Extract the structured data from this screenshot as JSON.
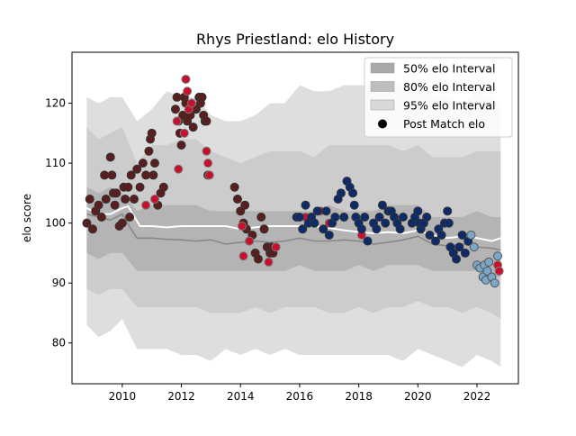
{
  "chart_data": {
    "type": "scatter",
    "title": "Rhys Priestland: elo History",
    "xlabel": "",
    "ylabel": "elo score",
    "xlim": [
      2008.3,
      2023.4
    ],
    "ylim": [
      73.2,
      128.5
    ],
    "x_ticks": [
      2010,
      2012,
      2014,
      2016,
      2018,
      2020,
      2022
    ],
    "y_ticks": [
      80,
      90,
      100,
      110,
      120
    ],
    "grid": false,
    "legend_position": "top-right",
    "legend": [
      {
        "label": "50% elo Interval",
        "kind": "band",
        "color": "#a9a9a9"
      },
      {
        "label": "80% elo Interval",
        "kind": "band",
        "color": "#bebebe"
      },
      {
        "label": "95% elo Interval",
        "kind": "band",
        "color": "#d9d9d9"
      },
      {
        "label": "Post Match elo",
        "kind": "marker",
        "color": "#000000"
      }
    ],
    "bands": [
      {
        "name": "95% elo Interval",
        "color": "#dedede",
        "x": [
          2008.8,
          2009.2,
          2009.6,
          2010.0,
          2010.5,
          2011.0,
          2011.5,
          2012.0,
          2012.5,
          2013.0,
          2013.5,
          2014.0,
          2014.5,
          2015.0,
          2015.5,
          2016.0,
          2016.5,
          2017.0,
          2017.5,
          2018.0,
          2018.5,
          2019.0,
          2019.5,
          2020.0,
          2020.5,
          2021.0,
          2021.5,
          2022.0,
          2022.5,
          2022.8
        ],
        "upper": [
          121,
          120,
          121,
          121,
          117,
          119,
          122,
          121,
          121,
          118,
          117,
          117,
          118,
          120,
          120,
          123,
          122,
          122,
          123,
          123,
          123,
          124,
          123,
          124,
          121,
          121,
          120,
          122,
          121,
          120
        ],
        "lower": [
          83,
          81,
          82,
          84,
          79,
          79,
          79,
          78,
          78,
          77,
          79,
          78,
          79,
          78,
          79,
          78,
          78,
          78,
          78,
          78,
          78,
          78,
          77,
          79,
          78,
          77,
          76,
          78,
          77,
          76
        ]
      },
      {
        "name": "80% elo Interval",
        "color": "#cccccc",
        "x": [
          2008.8,
          2009.2,
          2009.6,
          2010.0,
          2010.5,
          2011.0,
          2011.5,
          2012.0,
          2012.5,
          2013.0,
          2013.5,
          2014.0,
          2014.5,
          2015.0,
          2015.5,
          2016.0,
          2016.5,
          2017.0,
          2017.5,
          2018.0,
          2018.5,
          2019.0,
          2019.5,
          2020.0,
          2020.5,
          2021.0,
          2021.5,
          2022.0,
          2022.5,
          2022.8
        ],
        "upper": [
          116,
          114,
          115,
          116,
          110,
          113,
          113,
          114,
          114,
          112,
          111,
          110,
          111,
          112,
          112,
          112,
          111,
          113,
          113,
          113,
          113,
          113,
          112,
          113,
          111,
          111,
          111,
          112,
          112,
          112
        ],
        "lower": [
          89,
          88,
          89,
          89,
          86,
          86,
          86,
          86,
          86,
          85,
          85,
          85,
          86,
          85,
          86,
          86,
          86,
          85,
          85,
          86,
          85,
          86,
          86,
          87,
          86,
          86,
          85,
          86,
          85,
          84
        ]
      },
      {
        "name": "50% elo Interval",
        "color": "#b4b4b4",
        "x": [
          2008.8,
          2009.2,
          2009.6,
          2010.0,
          2010.5,
          2011.0,
          2011.5,
          2012.0,
          2012.5,
          2013.0,
          2013.5,
          2014.0,
          2014.5,
          2015.0,
          2015.5,
          2016.0,
          2016.5,
          2017.0,
          2017.5,
          2018.0,
          2018.5,
          2019.0,
          2019.5,
          2020.0,
          2020.5,
          2021.0,
          2021.5,
          2022.0,
          2022.5,
          2022.8
        ],
        "upper": [
          106,
          105,
          106,
          105,
          102,
          103,
          103,
          103,
          103,
          102,
          102,
          102,
          102,
          102,
          102,
          102,
          102,
          103,
          102,
          102,
          102,
          103,
          103,
          103,
          101,
          101,
          101,
          102,
          101,
          101
        ],
        "lower": [
          95,
          94,
          95,
          95,
          92,
          92,
          92,
          92,
          92,
          92,
          92,
          92,
          92,
          92,
          92,
          93,
          92,
          92,
          92,
          93,
          92,
          93,
          93,
          93,
          92,
          92,
          92,
          92,
          91,
          91
        ]
      }
    ],
    "lines": [
      {
        "name": "median",
        "color": "#888888",
        "x": [
          2008.8,
          2009.2,
          2009.6,
          2010.0,
          2010.3,
          2010.5,
          2011.0,
          2011.5,
          2012.0,
          2012.5,
          2013.0,
          2013.5,
          2014.0,
          2014.5,
          2015.0,
          2015.5,
          2016.0,
          2016.5,
          2017.0,
          2017.5,
          2018.0,
          2018.5,
          2019.0,
          2019.5,
          2020.0,
          2020.5,
          2021.0,
          2021.5,
          2022.0,
          2022.5,
          2022.8
        ],
        "y": [
          101.5,
          101.0,
          100.5,
          101.5,
          99.0,
          97.5,
          97.5,
          97.3,
          97.2,
          97.0,
          97.2,
          96.5,
          96.8,
          97.0,
          96.8,
          97.0,
          97.5,
          97.0,
          97.0,
          97.2,
          97.0,
          96.5,
          96.8,
          97.2,
          97.8,
          96.5,
          96.2,
          96.5,
          96.0,
          95.8,
          95.5
        ]
      },
      {
        "name": "mean",
        "color": "#ffffff",
        "x": [
          2008.8,
          2009.2,
          2009.6,
          2010.0,
          2010.2,
          2010.6,
          2011.0,
          2011.5,
          2012.0,
          2012.5,
          2013.0,
          2013.5,
          2014.0,
          2014.5,
          2015.0,
          2015.5,
          2016.0,
          2016.5,
          2017.0,
          2017.5,
          2018.0,
          2018.5,
          2019.0,
          2019.5,
          2020.0,
          2020.5,
          2021.0,
          2021.5,
          2022.0,
          2022.5,
          2022.8
        ],
        "y": [
          102.5,
          101.5,
          101.5,
          102.5,
          102.8,
          99.5,
          99.5,
          99.3,
          99.5,
          99.5,
          99.5,
          99.5,
          99.0,
          99.3,
          99.5,
          99.5,
          99.5,
          99.5,
          99.2,
          98.8,
          98.5,
          98.3,
          98.5,
          98.3,
          98.8,
          98.0,
          97.5,
          97.8,
          97.5,
          97.0,
          97.5
        ]
      }
    ],
    "series": [
      {
        "name": "Post Match elo",
        "fill": "#5a1e1e",
        "edge": "#333333",
        "x": [
          2008.8,
          2008.9,
          2009.0,
          2009.1,
          2009.2,
          2009.3,
          2009.4,
          2009.45,
          2009.6,
          2009.65,
          2009.7,
          2009.75,
          2009.8,
          2009.9,
          2010.0,
          2010.05,
          2010.1,
          2010.2,
          2010.25,
          2010.3,
          2010.4,
          2010.5,
          2010.6,
          2010.7,
          2010.8,
          2010.9,
          2010.95,
          2011.0,
          2011.05,
          2011.1,
          2011.2,
          2011.3,
          2011.4,
          2011.8,
          2011.85,
          2011.9,
          2011.95,
          2012.0,
          2012.05,
          2012.1,
          2012.15,
          2012.2,
          2012.3,
          2012.4,
          2012.5,
          2012.6,
          2012.65,
          2012.7,
          2012.75,
          2012.8,
          2012.85,
          2012.9,
          2013.8,
          2013.9,
          2014.0,
          2014.1,
          2014.15,
          2014.2,
          2014.3,
          2014.4,
          2014.5,
          2014.6,
          2014.7,
          2014.8,
          2014.9,
          2015.0,
          2015.05,
          2015.1
        ],
        "y": [
          100,
          104,
          99,
          102,
          103,
          101,
          108,
          104,
          111,
          108,
          105,
          103,
          105,
          99.5,
          100,
          106,
          104,
          106,
          101,
          108,
          104,
          109,
          106,
          110,
          108,
          112,
          114,
          115,
          108,
          110,
          103,
          105,
          106,
          119,
          121,
          117,
          115,
          113,
          118,
          121,
          120,
          117,
          118,
          116,
          119,
          121,
          120,
          121,
          118,
          117,
          117,
          108,
          106,
          104,
          102,
          100,
          103,
          99,
          97,
          98,
          95,
          94,
          101,
          99,
          96,
          95,
          96,
          95
        ]
      },
      {
        "name": "Post Match elo",
        "fill": "#c8102e",
        "edge": "#7a7a7a",
        "x": [
          2010.8,
          2011.1,
          2011.85,
          2011.9,
          2012.1,
          2012.15,
          2012.2,
          2012.25,
          2012.35,
          2012.85,
          2012.9,
          2012.95,
          2014.05,
          2014.1,
          2014.3,
          2014.95,
          2015.2,
          2016.2,
          2016.5,
          2016.7,
          2017.0,
          2018.1,
          2022.7,
          2022.75
        ],
        "y": [
          103,
          104,
          117,
          109,
          115,
          124,
          122,
          119,
          120,
          112,
          110,
          108,
          99.5,
          94.5,
          97,
          93.5,
          96,
          101,
          100,
          102,
          100,
          98,
          93,
          92
        ]
      },
      {
        "name": "Post Match elo",
        "fill": "#0d2b6b",
        "edge": "#333333",
        "x": [
          2015.9,
          2016.0,
          2016.1,
          2016.2,
          2016.3,
          2016.4,
          2016.5,
          2016.6,
          2016.8,
          2016.9,
          2017.0,
          2017.1,
          2017.2,
          2017.3,
          2017.4,
          2017.5,
          2017.6,
          2017.7,
          2017.8,
          2017.85,
          2017.9,
          2018.0,
          2018.1,
          2018.2,
          2018.3,
          2018.5,
          2018.6,
          2018.7,
          2018.8,
          2018.9,
          2019.0,
          2019.1,
          2019.2,
          2019.3,
          2019.4,
          2019.5,
          2019.8,
          2019.9,
          2020.0,
          2020.05,
          2020.1,
          2020.2,
          2020.3,
          2020.4,
          2020.6,
          2020.7,
          2020.8,
          2020.9,
          2021.0,
          2021.05,
          2021.1,
          2021.2,
          2021.3,
          2021.4,
          2021.5,
          2021.6,
          2021.7
        ],
        "y": [
          101,
          101,
          99,
          103,
          100,
          101,
          100,
          102,
          99,
          102,
          98,
          100,
          101,
          104,
          105,
          101,
          107,
          106,
          105,
          103,
          101,
          100,
          99,
          101,
          97,
          100,
          99,
          101,
          103,
          100,
          102,
          102,
          101,
          100,
          99,
          101,
          100,
          101,
          102,
          100,
          99,
          100,
          101,
          98,
          97,
          99,
          98,
          100,
          102,
          100,
          96,
          95,
          94,
          96,
          98,
          95,
          97
        ]
      },
      {
        "name": "Post Match elo",
        "fill": "#7ba7c9",
        "edge": "#555555",
        "x": [
          2021.8,
          2021.9,
          2022.0,
          2022.1,
          2022.2,
          2022.25,
          2022.3,
          2022.35,
          2022.4,
          2022.5,
          2022.6,
          2022.7
        ],
        "y": [
          98,
          96,
          93,
          92.5,
          91,
          93,
          90.5,
          92,
          93.5,
          91,
          90,
          94.5
        ]
      }
    ]
  }
}
